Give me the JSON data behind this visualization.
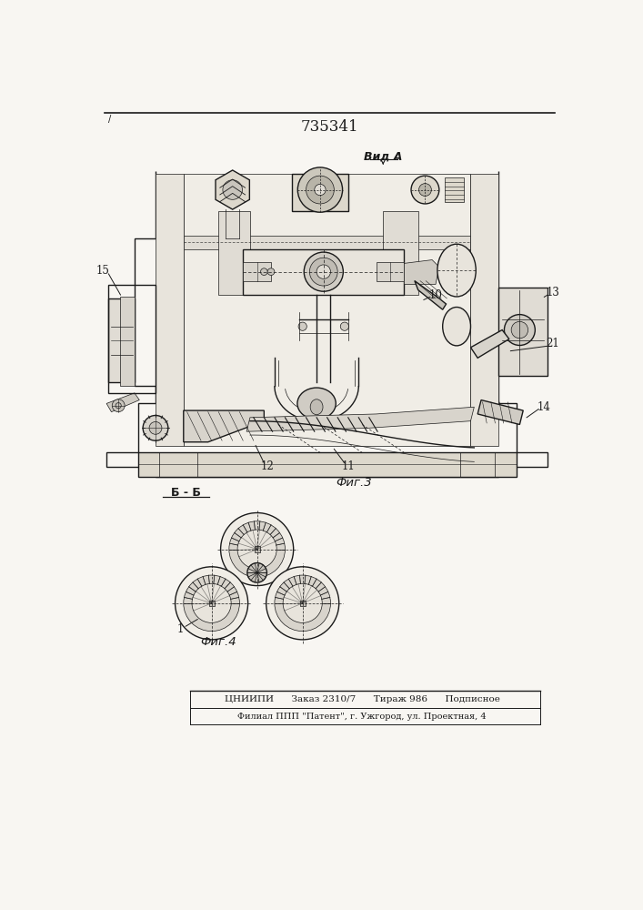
{
  "patent_number": "735341",
  "view_label": "Вид А",
  "fig3_label": "Фиг.3",
  "fig4_label": "Фиг.4",
  "section_label": "Б - Б",
  "bottom_line1": "ЦНИИПИ      Заказ 2310/7      Тираж 986      Подписное",
  "bottom_line2": "Филиал ППП \"Патент\", г. Ужгород, ул. Проектная, 4",
  "bg_color": "#f8f6f2",
  "fg_color": "#1a1a1a",
  "lw_main": 1.0,
  "lw_thin": 0.5,
  "lw_thick": 1.5
}
